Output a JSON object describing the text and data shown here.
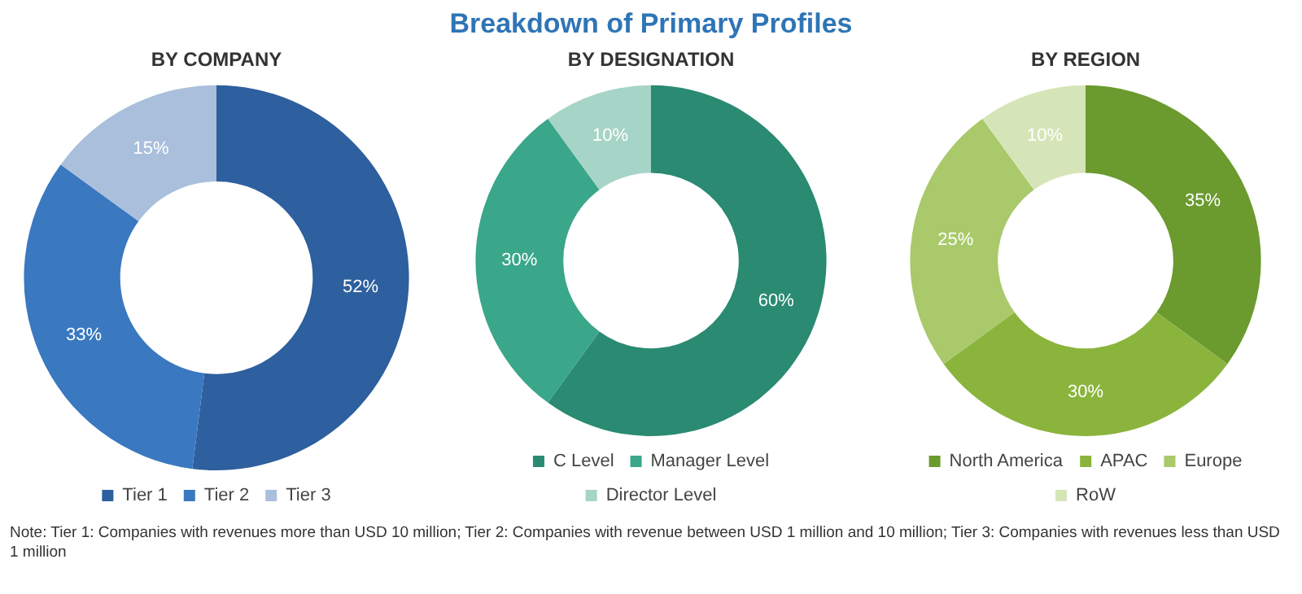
{
  "chart_data": [
    {
      "type": "donut",
      "subtitle": "BY COMPANY",
      "categories": [
        "Tier 1",
        "Tier 2",
        "Tier 3"
      ],
      "values": [
        52,
        33,
        15
      ],
      "value_labels": [
        "52%",
        "33%",
        "15%"
      ],
      "colors": [
        "#2e5f9e",
        "#3a78c0",
        "#a9bfdc"
      ],
      "legend": "bottom",
      "annotations": [
        "Note: Tier 1: Companies with revenues more than USD 10 million; Tier 2: Companies with revenue between USD 1 million and 10 million; Tier 3: Companies with revenues less than USD 1 million"
      ]
    },
    {
      "type": "donut",
      "title": "Breakdown of Primary Profiles",
      "subtitle": "BY DESIGNATION",
      "categories": [
        "C Level",
        "Manager Level",
        "Director Level"
      ],
      "values": [
        60,
        30,
        10
      ],
      "value_labels": [
        "60%",
        "30%",
        "10%"
      ],
      "colors": [
        "#2a8a72",
        "#3aa68a",
        "#a6d4c6"
      ],
      "legend": "bottom"
    },
    {
      "type": "donut",
      "subtitle": "BY REGION",
      "categories": [
        "North America",
        "APAC",
        "Europe",
        "RoW"
      ],
      "values": [
        35,
        30,
        25,
        10
      ],
      "value_labels": [
        "35%",
        "30%",
        "25%",
        "10%"
      ],
      "colors": [
        "#6b9a2e",
        "#8ab43c",
        "#a9c96a",
        "#d6e5b8"
      ],
      "legend": "bottom"
    }
  ]
}
